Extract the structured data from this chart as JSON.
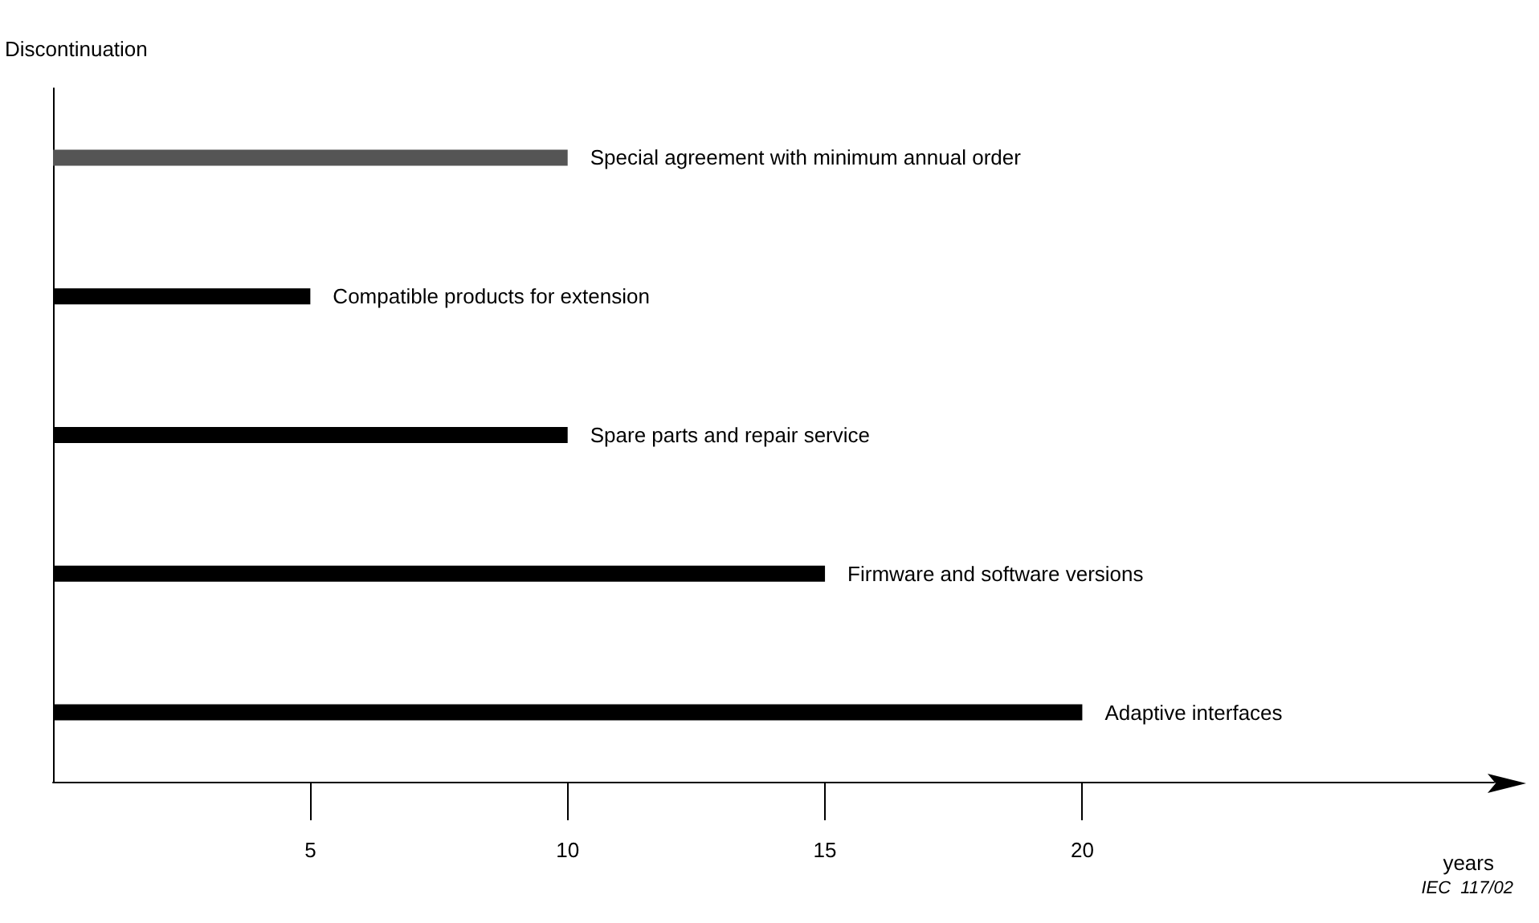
{
  "chart_data": {
    "type": "bar",
    "orientation": "horizontal",
    "categories": [
      "Special agreement with minimum annual order",
      "Compatible products for extension",
      "Spare parts and repair service",
      "Firmware and software versions",
      "Adaptive interfaces"
    ],
    "values": [
      10,
      5,
      10,
      15,
      20
    ],
    "colors": [
      "#555555",
      "#000000",
      "#000000",
      "#000000",
      "#000000"
    ],
    "xlim": [
      0,
      28
    ],
    "xticks": [
      5,
      10,
      15,
      20
    ],
    "xlabel": "years",
    "ylabel": "Discontinuation",
    "tick_labels": "x",
    "grid": false,
    "annotations": [
      "IEC  117/02"
    ]
  }
}
